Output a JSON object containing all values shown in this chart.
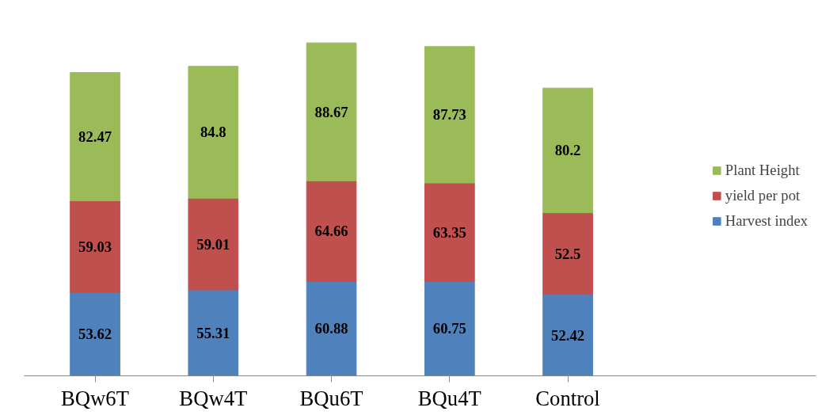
{
  "chart_data": {
    "type": "bar",
    "stacked": true,
    "data_labels": true,
    "legend": "right",
    "grid": false,
    "tick_labels": "x",
    "categories": [
      "BQw6T",
      "BQw4T",
      "BQu6T",
      "BQu4T",
      "Control"
    ],
    "series": [
      {
        "name": "Harvest index",
        "color": "#4f81bd",
        "values": [
          53.62,
          55.31,
          60.88,
          60.75,
          52.42
        ]
      },
      {
        "name": "yield per pot",
        "color": "#c0504d",
        "values": [
          59.03,
          59.01,
          64.66,
          63.35,
          52.5
        ]
      },
      {
        "name": "Plant Height",
        "color": "#9bbb59",
        "values": [
          82.47,
          84.8,
          88.67,
          87.73,
          80.2
        ]
      }
    ]
  }
}
